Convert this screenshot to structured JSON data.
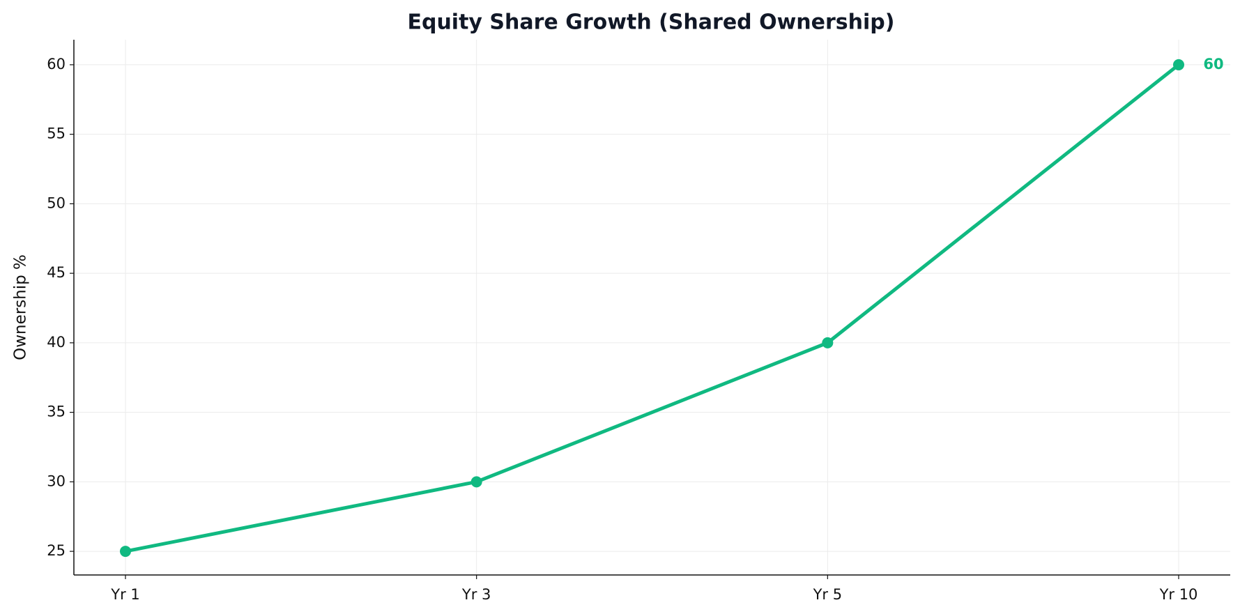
{
  "chart_data": {
    "type": "line",
    "title": "Equity Share Growth (Shared Ownership)",
    "y_label": "Ownership %",
    "categories": [
      "Yr 1",
      "Yr 3",
      "Yr 5",
      "Yr 10"
    ],
    "values": [
      25,
      30,
      40,
      60
    ],
    "color": "#10b981",
    "ylim": [
      23.3,
      61.8
    ],
    "yticks": [
      25,
      30,
      35,
      40,
      45,
      50,
      55,
      60
    ],
    "grid": true,
    "annotate_last": true
  }
}
